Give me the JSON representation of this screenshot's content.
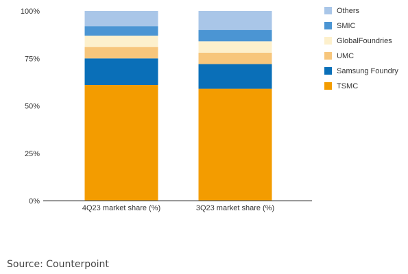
{
  "chart_data": {
    "type": "bar",
    "stacked": true,
    "categories": [
      "4Q23 market share (%)",
      "3Q23 market share (%)"
    ],
    "series": [
      {
        "name": "TSMC",
        "values": [
          61,
          59
        ],
        "color": "#f39c00"
      },
      {
        "name": "Samsung Foundry",
        "values": [
          14,
          13
        ],
        "color": "#0a6fb8"
      },
      {
        "name": "UMC",
        "values": [
          6,
          6
        ],
        "color": "#f7c67c"
      },
      {
        "name": "GlobalFoundries",
        "values": [
          6,
          6
        ],
        "color": "#fdf0cc"
      },
      {
        "name": "SMIC",
        "values": [
          5,
          6
        ],
        "color": "#4b95d3"
      },
      {
        "name": "Others",
        "values": [
          8,
          10
        ],
        "color": "#a9c6e8"
      }
    ],
    "y_ticks": [
      "0%",
      "25%",
      "50%",
      "75%",
      "100%"
    ],
    "ylim": [
      0,
      100
    ],
    "legend_position": "right",
    "grid": false
  },
  "source": "Source: Counterpoint"
}
